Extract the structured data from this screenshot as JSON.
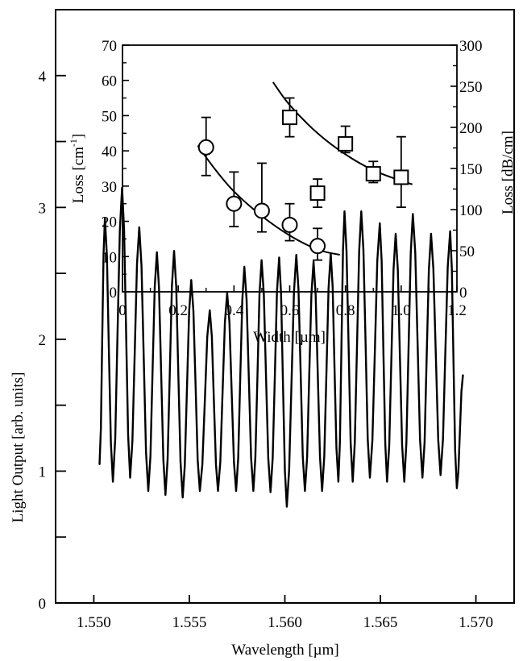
{
  "chart_data": [
    {
      "type": "line",
      "xlabel": "Wavelength [µm]",
      "ylabel": "Light Output [arb. units]",
      "xlim": [
        1.548,
        1.572
      ],
      "ylim": [
        0,
        4.5
      ],
      "xticks": [
        1.55,
        1.555,
        1.56,
        1.565,
        1.57
      ],
      "xtick_labels": [
        "1.550",
        "1.555",
        "1.560",
        "1.565",
        "1.570"
      ],
      "yticks": [
        0,
        1,
        2,
        3,
        4
      ],
      "ytick_labels": [
        "0",
        "1",
        "2",
        "3",
        "4"
      ],
      "series": [
        {
          "peaks": [
            [
              1.55058,
              2.92
            ],
            [
              1.55148,
              3.15
            ],
            [
              1.55238,
              2.85
            ],
            [
              1.5533,
              2.66
            ],
            [
              1.5542,
              2.67
            ],
            [
              1.5551,
              2.45
            ],
            [
              1.55607,
              2.22
            ],
            [
              1.55698,
              2.35
            ],
            [
              1.55788,
              2.55
            ],
            [
              1.55878,
              2.6
            ],
            [
              1.5597,
              2.62
            ],
            [
              1.5606,
              2.64
            ],
            [
              1.5615,
              2.59
            ],
            [
              1.5624,
              2.65
            ],
            [
              1.56312,
              2.97
            ],
            [
              1.564,
              2.97
            ],
            [
              1.56497,
              2.88
            ],
            [
              1.5658,
              2.8
            ],
            [
              1.5667,
              2.95
            ],
            [
              1.56765,
              2.8
            ],
            [
              1.56865,
              2.82
            ]
          ],
          "valleys": [
            [
              1.5503,
              1.05
            ],
            [
              1.551,
              0.92
            ],
            [
              1.5519,
              0.95
            ],
            [
              1.55285,
              0.85
            ],
            [
              1.55375,
              0.82
            ],
            [
              1.55465,
              0.8
            ],
            [
              1.55555,
              0.85
            ],
            [
              1.5565,
              0.85
            ],
            [
              1.55745,
              0.85
            ],
            [
              1.55835,
              0.85
            ],
            [
              1.55925,
              0.84
            ],
            [
              1.5601,
              0.73
            ],
            [
              1.56105,
              0.85
            ],
            [
              1.56195,
              0.85
            ],
            [
              1.5628,
              0.92
            ],
            [
              1.56355,
              0.92
            ],
            [
              1.56445,
              0.95
            ],
            [
              1.56535,
              0.92
            ],
            [
              1.56625,
              0.92
            ],
            [
              1.5672,
              0.95
            ],
            [
              1.56815,
              0.97
            ],
            [
              1.569,
              0.87
            ]
          ],
          "end": [
            1.56932,
            1.73
          ]
        }
      ]
    },
    {
      "type": "scatter",
      "xlabel": "Width [µm]",
      "ylabel_left": "Loss  [cm-1]",
      "ylabel_left_main": "Loss  [cm",
      "ylabel_left_sup": "-1",
      "ylabel_left_close": "]",
      "ylabel_right": "Loss  [dB/cm]",
      "xlim": [
        0,
        1.2
      ],
      "ylim_left": [
        0,
        70
      ],
      "ylim_right": [
        0,
        300
      ],
      "xticks": [
        0,
        0.2,
        0.4,
        0.6,
        0.8,
        1.0,
        1.2
      ],
      "xtick_labels": [
        "0",
        "0.2",
        "0.4",
        "0.6",
        "0.8",
        "1.0",
        "1.2"
      ],
      "yticks_left": [
        0,
        10,
        20,
        30,
        40,
        50,
        60,
        70
      ],
      "ytick_labels_left": [
        "0",
        "10",
        "20",
        "30",
        "40",
        "50",
        "60",
        "70"
      ],
      "yticks_right": [
        0,
        50,
        100,
        150,
        200,
        250,
        300
      ],
      "ytick_labels_right": [
        "0",
        "50",
        "100",
        "150",
        "200",
        "250",
        "300"
      ],
      "series": [
        {
          "marker": "circle",
          "axis": "left",
          "x": [
            0.3,
            0.4,
            0.5,
            0.6,
            0.7
          ],
          "y": [
            41,
            25,
            23,
            19,
            13
          ],
          "err_low": [
            33,
            18.5,
            17,
            14.5,
            9
          ],
          "err_high": [
            49.5,
            34,
            36.5,
            25,
            18
          ],
          "fit": [
            [
              0.27,
              41.5
            ],
            [
              0.33,
              35
            ],
            [
              0.4,
              28.5
            ],
            [
              0.5,
              21.5
            ],
            [
              0.6,
              16
            ],
            [
              0.7,
              12
            ],
            [
              0.78,
              10.5
            ]
          ]
        },
        {
          "marker": "square",
          "axis": "left",
          "x": [
            0.6,
            0.7,
            0.8,
            0.9,
            1.0
          ],
          "y": [
            49.5,
            28,
            42,
            33.5,
            32.5
          ],
          "err_low": [
            44,
            24,
            39.5,
            31,
            24
          ],
          "err_high": [
            55,
            32,
            47,
            37,
            44
          ],
          "fit": [
            [
              0.54,
              59.5
            ],
            [
              0.6,
              53
            ],
            [
              0.7,
              45
            ],
            [
              0.8,
              39
            ],
            [
              0.9,
              34.5
            ],
            [
              1.0,
              31.5
            ],
            [
              1.04,
              30.5
            ]
          ]
        }
      ]
    }
  ]
}
